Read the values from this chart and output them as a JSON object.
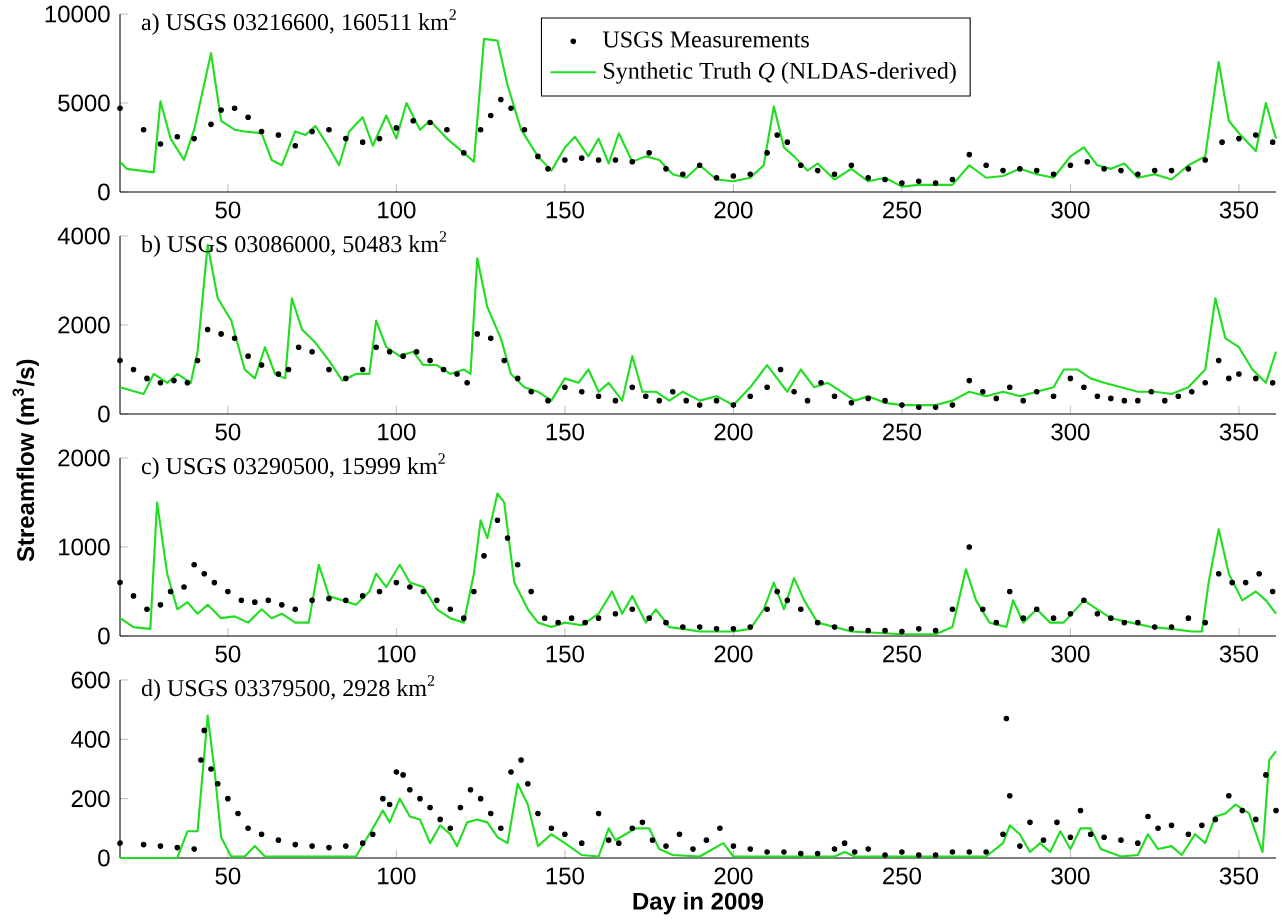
{
  "chart_data": [
    {
      "type": "line",
      "title": "a) USGS 03216600, 160511 km$^{2}$",
      "xlim": [
        18,
        361
      ],
      "xticks": [
        50,
        100,
        150,
        200,
        250,
        300,
        350
      ],
      "ylim": [
        0,
        10000
      ],
      "yticks": [
        0,
        5000,
        10000
      ],
      "legend": "top",
      "series": [
        {
          "type": "scatter",
          "name": "USGS Measurements",
          "color": "#000000",
          "marker": "circle",
          "x": [
            18,
            25,
            30,
            35,
            40,
            45,
            48,
            52,
            56,
            60,
            65,
            70,
            75,
            80,
            85,
            90,
            95,
            100,
            105,
            110,
            115,
            120,
            125,
            128,
            131,
            134,
            138,
            142,
            145,
            150,
            155,
            160,
            165,
            170,
            175,
            180,
            185,
            190,
            195,
            200,
            205,
            210,
            213,
            216,
            220,
            225,
            230,
            235,
            240,
            245,
            250,
            255,
            260,
            265,
            270,
            275,
            280,
            285,
            290,
            295,
            300,
            305,
            310,
            315,
            320,
            325,
            330,
            335,
            340,
            345,
            350,
            355,
            360
          ],
          "values": [
            4700,
            3500,
            2700,
            3100,
            3000,
            3800,
            4600,
            4700,
            4200,
            3400,
            3200,
            2600,
            3400,
            3500,
            3000,
            2800,
            3000,
            3600,
            4000,
            3900,
            3500,
            2200,
            3500,
            4300,
            5200,
            4700,
            3500,
            2000,
            1300,
            1800,
            1900,
            1800,
            1800,
            1700,
            2200,
            1300,
            1000,
            1500,
            800,
            900,
            1000,
            2200,
            3200,
            2800,
            1500,
            1200,
            1000,
            1500,
            800,
            700,
            500,
            600,
            500,
            700,
            2100,
            1500,
            1200,
            1300,
            1200,
            1000,
            1500,
            1700,
            1300,
            1200,
            1000,
            1200,
            1200,
            1300,
            1800,
            2800,
            3000,
            3200,
            2800
          ]
        },
        {
          "name": "Synthetic Truth *Q* (NLDAS-derived)",
          "color": "#22dd22",
          "marker": "none",
          "x": [
            18,
            20,
            28,
            30,
            33,
            37,
            40,
            45,
            48,
            52,
            55,
            60,
            63,
            66,
            70,
            73,
            76,
            80,
            83,
            86,
            90,
            93,
            97,
            100,
            103,
            107,
            110,
            115,
            120,
            123,
            126,
            130,
            133,
            137,
            142,
            146,
            150,
            153,
            157,
            160,
            163,
            166,
            170,
            174,
            178,
            182,
            186,
            190,
            195,
            200,
            205,
            209,
            212,
            215,
            218,
            222,
            225,
            230,
            235,
            240,
            245,
            250,
            255,
            260,
            265,
            270,
            275,
            280,
            285,
            290,
            295,
            300,
            304,
            308,
            312,
            316,
            320,
            325,
            330,
            335,
            340,
            344,
            347,
            350,
            355,
            358,
            361
          ],
          "values": [
            1700,
            1300,
            1100,
            5100,
            3000,
            1800,
            3500,
            7800,
            4000,
            3500,
            3400,
            3300,
            1800,
            1500,
            3400,
            3200,
            3700,
            2500,
            1500,
            3400,
            4200,
            2600,
            4300,
            3000,
            5000,
            3500,
            4000,
            3000,
            2200,
            1700,
            8600,
            8500,
            6000,
            3500,
            2000,
            1200,
            2500,
            3100,
            2000,
            3000,
            1600,
            3300,
            1700,
            2000,
            1800,
            1000,
            800,
            1500,
            700,
            600,
            800,
            1500,
            4800,
            2500,
            2000,
            1200,
            1600,
            700,
            1300,
            600,
            800,
            300,
            400,
            400,
            400,
            1500,
            800,
            900,
            1300,
            1000,
            800,
            2000,
            2500,
            1500,
            1300,
            1600,
            800,
            1000,
            700,
            1500,
            2000,
            7300,
            4000,
            3300,
            2300,
            5000,
            3000
          ]
        }
      ]
    },
    {
      "type": "line",
      "title": "b) USGS 03086000, 50483 km$^{2}$",
      "ylabel": "Streamflow (m$^{3}$/s)",
      "xlim": [
        18,
        361
      ],
      "xticks": [
        50,
        100,
        150,
        200,
        250,
        300,
        350
      ],
      "ylim": [
        0,
        4000
      ],
      "yticks": [
        0,
        2000,
        4000
      ],
      "series": [
        {
          "type": "scatter",
          "color": "#000000",
          "marker": "circle",
          "x": [
            18,
            22,
            26,
            30,
            34,
            38,
            41,
            44,
            48,
            52,
            56,
            60,
            65,
            68,
            71,
            75,
            80,
            85,
            90,
            94,
            98,
            102,
            106,
            110,
            114,
            118,
            121,
            124,
            128,
            132,
            136,
            140,
            145,
            150,
            155,
            160,
            165,
            170,
            174,
            178,
            182,
            186,
            190,
            195,
            200,
            205,
            210,
            214,
            218,
            222,
            226,
            230,
            235,
            240,
            245,
            250,
            255,
            260,
            265,
            270,
            274,
            278,
            282,
            286,
            290,
            295,
            300,
            304,
            308,
            312,
            316,
            320,
            324,
            328,
            332,
            336,
            340,
            344,
            347,
            350,
            355,
            360
          ],
          "values": [
            1200,
            1000,
            800,
            700,
            750,
            700,
            1200,
            1900,
            1800,
            1700,
            1300,
            1100,
            900,
            1000,
            1500,
            1400,
            1000,
            800,
            1000,
            1500,
            1400,
            1300,
            1400,
            1200,
            1000,
            900,
            700,
            1800,
            1700,
            1200,
            800,
            500,
            300,
            600,
            500,
            400,
            300,
            600,
            400,
            300,
            500,
            300,
            200,
            300,
            200,
            400,
            600,
            1000,
            500,
            300,
            700,
            400,
            250,
            350,
            300,
            200,
            150,
            150,
            200,
            750,
            500,
            350,
            600,
            300,
            500,
            400,
            800,
            600,
            400,
            350,
            300,
            300,
            500,
            300,
            400,
            500,
            700,
            1200,
            800,
            900,
            800,
            700
          ]
        },
        {
          "color": "#22dd22",
          "marker": "none",
          "x": [
            18,
            25,
            28,
            32,
            35,
            39,
            41,
            44,
            47,
            51,
            55,
            58,
            61,
            64,
            67,
            69,
            72,
            76,
            80,
            84,
            88,
            92,
            94,
            97,
            101,
            105,
            108,
            112,
            116,
            120,
            122,
            124,
            127,
            131,
            134,
            138,
            142,
            146,
            150,
            154,
            157,
            160,
            163,
            167,
            170,
            173,
            177,
            181,
            185,
            190,
            195,
            200,
            205,
            210,
            213,
            216,
            220,
            224,
            228,
            232,
            236,
            240,
            245,
            250,
            255,
            260,
            265,
            270,
            275,
            280,
            285,
            290,
            295,
            298,
            302,
            306,
            310,
            315,
            320,
            325,
            330,
            335,
            340,
            343,
            346,
            350,
            354,
            358,
            361
          ],
          "values": [
            600,
            450,
            900,
            700,
            900,
            700,
            1400,
            3800,
            2600,
            2100,
            1000,
            800,
            1500,
            900,
            800,
            2600,
            1900,
            1600,
            1200,
            750,
            900,
            900,
            2100,
            1500,
            1300,
            1400,
            1100,
            1100,
            900,
            1000,
            900,
            3500,
            2400,
            1700,
            900,
            600,
            500,
            300,
            800,
            700,
            1000,
            500,
            700,
            300,
            1300,
            500,
            500,
            300,
            500,
            300,
            400,
            200,
            600,
            1100,
            800,
            500,
            1000,
            600,
            700,
            500,
            300,
            400,
            250,
            200,
            200,
            200,
            300,
            500,
            400,
            500,
            400,
            500,
            600,
            1000,
            1000,
            800,
            700,
            600,
            500,
            500,
            450,
            600,
            1000,
            2600,
            1700,
            1500,
            1000,
            700,
            1400
          ]
        }
      ]
    },
    {
      "type": "line",
      "title": "c) USGS 03290500, 15999 km$^{2}$",
      "xlim": [
        18,
        361
      ],
      "xticks": [
        50,
        100,
        150,
        200,
        250,
        300,
        350
      ],
      "ylim": [
        0,
        2000
      ],
      "yticks": [
        0,
        1000,
        2000
      ],
      "series": [
        {
          "type": "scatter",
          "color": "#000000",
          "marker": "circle",
          "x": [
            18,
            22,
            26,
            30,
            33,
            37,
            40,
            43,
            46,
            50,
            54,
            58,
            62,
            66,
            70,
            75,
            80,
            85,
            90,
            95,
            100,
            104,
            108,
            112,
            116,
            120,
            123,
            126,
            130,
            133,
            136,
            140,
            144,
            148,
            152,
            156,
            160,
            165,
            170,
            175,
            180,
            185,
            190,
            195,
            200,
            205,
            210,
            213,
            216,
            220,
            225,
            230,
            235,
            240,
            245,
            250,
            255,
            260,
            265,
            270,
            274,
            278,
            282,
            286,
            290,
            295,
            300,
            304,
            308,
            312,
            316,
            320,
            325,
            330,
            335,
            340,
            344,
            348,
            352,
            356,
            360
          ],
          "values": [
            600,
            450,
            300,
            350,
            500,
            550,
            800,
            700,
            600,
            500,
            400,
            380,
            400,
            350,
            300,
            400,
            420,
            400,
            450,
            500,
            600,
            550,
            500,
            400,
            300,
            200,
            500,
            900,
            1300,
            1100,
            800,
            500,
            200,
            150,
            200,
            150,
            200,
            250,
            300,
            200,
            150,
            100,
            100,
            80,
            80,
            100,
            300,
            500,
            400,
            300,
            150,
            100,
            80,
            60,
            60,
            50,
            80,
            60,
            300,
            1000,
            300,
            150,
            500,
            200,
            300,
            200,
            250,
            400,
            250,
            200,
            150,
            150,
            100,
            100,
            200,
            150,
            700,
            600,
            600,
            700,
            500
          ]
        },
        {
          "color": "#22dd22",
          "marker": "none",
          "x": [
            18,
            22,
            27,
            29,
            32,
            35,
            38,
            41,
            44,
            48,
            52,
            56,
            60,
            63,
            66,
            70,
            74,
            77,
            80,
            84,
            88,
            92,
            94,
            97,
            101,
            104,
            108,
            112,
            116,
            120,
            123,
            125,
            127,
            130,
            132,
            135,
            139,
            142,
            146,
            150,
            155,
            160,
            164,
            167,
            170,
            174,
            177,
            181,
            185,
            190,
            195,
            200,
            205,
            209,
            212,
            215,
            218,
            221,
            225,
            230,
            235,
            240,
            245,
            250,
            255,
            260,
            265,
            269,
            272,
            276,
            281,
            283,
            286,
            290,
            294,
            298,
            304,
            308,
            312,
            318,
            324,
            330,
            336,
            339,
            341,
            344,
            347,
            351,
            355,
            358,
            361
          ],
          "values": [
            200,
            100,
            80,
            1500,
            700,
            300,
            380,
            250,
            350,
            200,
            220,
            150,
            300,
            200,
            250,
            150,
            150,
            800,
            450,
            400,
            350,
            500,
            700,
            550,
            800,
            600,
            550,
            300,
            200,
            150,
            700,
            1300,
            1100,
            1600,
            1500,
            600,
            300,
            150,
            100,
            150,
            120,
            250,
            500,
            250,
            450,
            150,
            300,
            100,
            80,
            50,
            50,
            50,
            80,
            300,
            600,
            300,
            650,
            400,
            150,
            100,
            50,
            40,
            30,
            20,
            20,
            20,
            100,
            750,
            400,
            150,
            100,
            400,
            150,
            300,
            150,
            150,
            400,
            300,
            200,
            150,
            100,
            80,
            50,
            50,
            600,
            1200,
            700,
            400,
            500,
            400,
            250
          ]
        }
      ]
    },
    {
      "type": "line",
      "title": "d) USGS 03379500, 2928 km$^{2}$",
      "xlabel": "Day in 2009",
      "xlim": [
        18,
        361
      ],
      "xticks": [
        50,
        100,
        150,
        200,
        250,
        300,
        350
      ],
      "ylim": [
        0,
        600
      ],
      "yticks": [
        0,
        200,
        400,
        600
      ],
      "series": [
        {
          "type": "scatter",
          "color": "#000000",
          "marker": "circle",
          "x": [
            18,
            25,
            30,
            35,
            40,
            42,
            43,
            45,
            47,
            50,
            53,
            56,
            60,
            65,
            70,
            75,
            80,
            85,
            90,
            93,
            96,
            98,
            100,
            102,
            104,
            107,
            110,
            113,
            116,
            119,
            122,
            125,
            128,
            131,
            134,
            137,
            139,
            142,
            146,
            150,
            155,
            160,
            163,
            166,
            170,
            173,
            176,
            180,
            184,
            188,
            192,
            196,
            200,
            205,
            210,
            215,
            220,
            225,
            230,
            233,
            236,
            240,
            245,
            250,
            255,
            260,
            265,
            270,
            275,
            280,
            281,
            282,
            285,
            288,
            292,
            296,
            300,
            303,
            306,
            310,
            315,
            320,
            323,
            326,
            330,
            335,
            339,
            343,
            347,
            351,
            355,
            358,
            361
          ],
          "values": [
            50,
            45,
            40,
            35,
            30,
            330,
            430,
            300,
            250,
            200,
            150,
            100,
            80,
            60,
            45,
            40,
            35,
            40,
            50,
            80,
            200,
            180,
            290,
            280,
            230,
            200,
            170,
            130,
            100,
            170,
            230,
            200,
            150,
            100,
            290,
            330,
            250,
            150,
            100,
            80,
            50,
            150,
            60,
            50,
            100,
            120,
            60,
            40,
            80,
            30,
            60,
            100,
            40,
            30,
            20,
            20,
            15,
            15,
            30,
            50,
            20,
            30,
            10,
            20,
            10,
            10,
            20,
            20,
            20,
            80,
            470,
            210,
            40,
            120,
            60,
            120,
            70,
            160,
            80,
            70,
            60,
            50,
            140,
            100,
            110,
            80,
            110,
            130,
            210,
            160,
            130,
            280,
            160
          ]
        },
        {
          "color": "#22dd22",
          "marker": "none",
          "x": [
            18,
            25,
            30,
            35,
            38,
            41,
            44,
            46,
            48,
            51,
            55,
            58,
            61,
            70,
            80,
            88,
            93,
            96,
            98,
            101,
            104,
            107,
            110,
            113,
            116,
            118,
            121,
            124,
            127,
            130,
            133,
            136,
            139,
            142,
            146,
            150,
            155,
            160,
            163,
            165,
            168,
            171,
            175,
            178,
            182,
            190,
            197,
            200,
            210,
            220,
            230,
            233,
            236,
            245,
            260,
            275,
            280,
            282,
            285,
            288,
            291,
            294,
            297,
            300,
            303,
            306,
            309,
            315,
            320,
            323,
            326,
            330,
            333,
            337,
            340,
            343,
            346,
            349,
            353,
            357,
            359,
            361
          ],
          "values": [
            0,
            0,
            0,
            0,
            90,
            90,
            480,
            300,
            70,
            5,
            5,
            40,
            5,
            5,
            5,
            5,
            100,
            160,
            120,
            200,
            140,
            130,
            50,
            110,
            80,
            40,
            120,
            130,
            120,
            70,
            50,
            250,
            180,
            40,
            80,
            50,
            10,
            5,
            100,
            60,
            80,
            100,
            100,
            30,
            10,
            5,
            50,
            5,
            5,
            5,
            5,
            20,
            5,
            5,
            5,
            5,
            50,
            110,
            80,
            20,
            50,
            20,
            90,
            30,
            100,
            100,
            30,
            5,
            10,
            80,
            30,
            40,
            10,
            80,
            50,
            140,
            150,
            180,
            150,
            20,
            330,
            360
          ]
        }
      ]
    }
  ]
}
